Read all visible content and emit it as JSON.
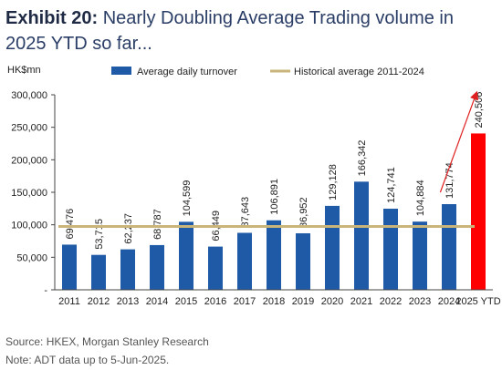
{
  "title_exhibit": "Exhibit 20:",
  "title_text": "Nearly Doubling Average Trading volume in 2025 YTD so far...",
  "source": "Source: HKEX, Morgan Stanley Research",
  "note": "Note: ADT data up to 5-Jun-2025.",
  "chart_data": {
    "type": "bar",
    "ylabel": "HK$mn",
    "ylim": [
      0,
      300000
    ],
    "yticks": [
      "-",
      "50,000",
      "100,000",
      "150,000",
      "200,000",
      "250,000",
      "300,000"
    ],
    "categories": [
      "2011",
      "2012",
      "2013",
      "2014",
      "2015",
      "2016",
      "2017",
      "2018",
      "2019",
      "2020",
      "2021",
      "2022",
      "2023",
      "2024",
      "2025 YTD"
    ],
    "series": [
      {
        "name": "Average daily turnover",
        "values": [
          69476,
          53715,
          62237,
          68787,
          104599,
          66449,
          87643,
          106891,
          86952,
          129128,
          166342,
          124741,
          104884,
          131774,
          240506
        ],
        "labels": [
          "69,476",
          "53,715",
          "62,237",
          "68,787",
          "104,599",
          "66,449",
          "87,643",
          "106,891",
          "86,952",
          "129,128",
          "166,342",
          "124,741",
          "104,884",
          "131,774",
          "240,506"
        ],
        "color": "#1f5aa6",
        "highlight_color": "#ff0000"
      }
    ],
    "reference_line": {
      "name": "Historical average 2011-2024",
      "value": 97401,
      "color": "#c9b57a"
    },
    "legend_position": "top",
    "grid": false,
    "annotation": "red arrow pointing up to 2025 YTD bar"
  }
}
